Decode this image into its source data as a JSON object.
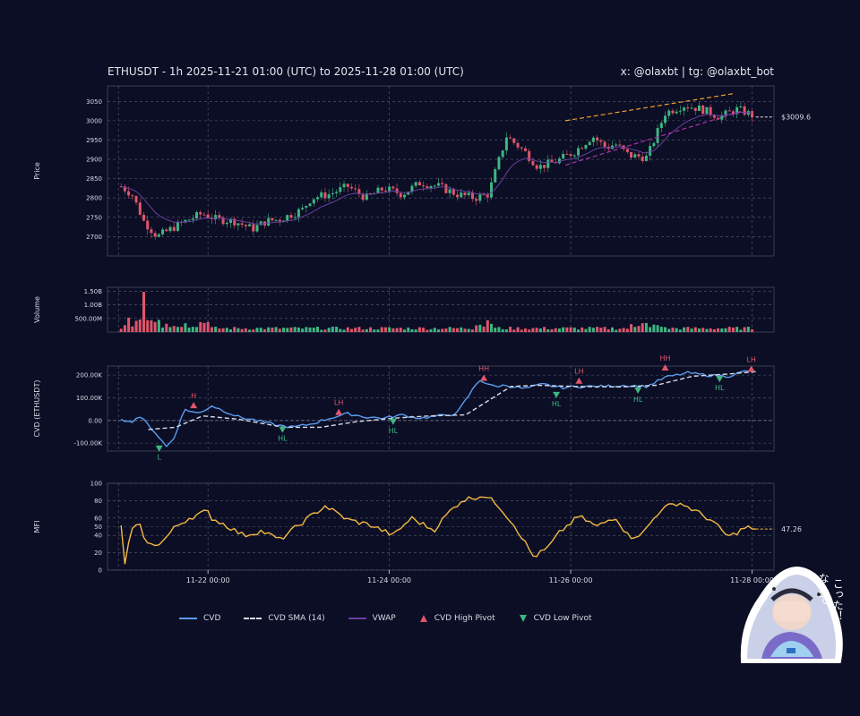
{
  "header": {
    "title": "ETHUSDT - 1h 2025-11-21 01:00 (UTC) to 2025-11-28 01:00 (UTC)",
    "credit": "x: @olaxbt | tg: @olaxbt_bot"
  },
  "colors": {
    "background": "#0b0e24",
    "up": "#3fb583",
    "down": "#e0556b",
    "cvd": "#5b9cf0",
    "cvd_sma": "#d8dbe6",
    "vwap": "#6a3fa0",
    "trend_upper": "#f0a030",
    "trend_lower": "#b030b0",
    "mfi": "#f5b942"
  },
  "legend": {
    "cvd": "CVD",
    "cvd_sma": "CVD SMA (14)",
    "vwap": "VWAP",
    "high_pivot": "CVD High Pivot",
    "low_pivot": "CVD Low Pivot"
  },
  "sticker": {
    "caption_line1": "こった！",
    "caption_line2": "なんて"
  },
  "chart_data": [
    {
      "type": "candlestick",
      "panel": "price",
      "ylabel": "Price",
      "ylim": [
        2650,
        3090
      ],
      "yticks": [
        2700,
        2750,
        2800,
        2850,
        2900,
        2950,
        3000,
        3050
      ],
      "xlim": [
        -0.15,
        7.2
      ],
      "last_price_label": "$3009.6",
      "last_price": 3009.6,
      "anchors_t": [
        0,
        0.12,
        0.25,
        0.4,
        0.55,
        0.75,
        0.9,
        1.05,
        1.25,
        1.45,
        1.6,
        1.75,
        2.0,
        2.1,
        2.3,
        2.5,
        2.7,
        2.9,
        3.1,
        3.3,
        3.5,
        3.7,
        3.9,
        4.05,
        4.25,
        4.45,
        4.6,
        4.8,
        5.0,
        5.2,
        5.35,
        5.45,
        5.6,
        5.8,
        6.0,
        6.2,
        6.4,
        6.6,
        6.8,
        7.0
      ],
      "anchors_price": [
        2830,
        2810,
        2740,
        2700,
        2720,
        2745,
        2760,
        2745,
        2740,
        2720,
        2740,
        2745,
        2770,
        2800,
        2810,
        2830,
        2800,
        2825,
        2810,
        2840,
        2830,
        2810,
        2800,
        2810,
        2960,
        2920,
        2880,
        2895,
        2920,
        2960,
        2930,
        2940,
        2910,
        2905,
        3020,
        3040,
        3030,
        3010,
        3030,
        3010
      ],
      "trend_upper": [
        [
          4.9,
          3000
        ],
        [
          6.75,
          3070
        ]
      ],
      "trend_lower": [
        [
          4.9,
          2885
        ],
        [
          6.85,
          3025
        ]
      ]
    },
    {
      "type": "bar",
      "panel": "volume",
      "ylabel": "Volume",
      "yticks": [
        "500.00M",
        "1.00B",
        "1.50B"
      ],
      "ytick_values": [
        500,
        1000,
        1500
      ],
      "ylim": [
        0,
        1650
      ],
      "units": "millions",
      "spike_time": 0.25,
      "spike_value": 1480
    },
    {
      "type": "line",
      "panel": "cvd",
      "ylabel": "CVD (ETHUSDT)",
      "yticks": [
        "-100.00K",
        "0.00",
        "100.00K",
        "200.00K"
      ],
      "ytick_values": [
        -100,
        0,
        100,
        200
      ],
      "ylim": [
        -135,
        240
      ],
      "units": "thousands",
      "cvd_t": [
        0,
        0.1,
        0.2,
        0.35,
        0.5,
        0.58,
        0.7,
        0.85,
        1.0,
        1.15,
        1.3,
        1.5,
        1.7,
        1.9,
        2.1,
        2.3,
        2.5,
        2.7,
        2.9,
        3.1,
        3.3,
        3.5,
        3.7,
        3.95,
        4.1,
        4.25,
        4.45,
        4.65,
        4.85,
        5.05,
        5.3,
        5.55,
        5.8,
        6.0,
        6.25,
        6.45,
        6.7,
        6.9,
        7.0
      ],
      "cvd_values": [
        10,
        -10,
        20,
        -40,
        -115,
        -80,
        50,
        30,
        65,
        40,
        15,
        0,
        -20,
        -30,
        -15,
        10,
        30,
        15,
        10,
        25,
        10,
        20,
        30,
        180,
        150,
        155,
        140,
        160,
        145,
        150,
        150,
        155,
        150,
        190,
        210,
        200,
        195,
        220,
        215
      ],
      "sma_t": [
        0.3,
        0.6,
        0.9,
        1.3,
        1.8,
        2.2,
        2.6,
        3.0,
        3.4,
        3.8,
        4.1,
        4.3,
        4.6,
        5.0,
        5.5,
        5.9,
        6.3,
        6.7,
        7.0
      ],
      "sma_values": [
        -40,
        -30,
        20,
        5,
        -30,
        -30,
        -5,
        10,
        20,
        25,
        100,
        150,
        155,
        150,
        148,
        155,
        195,
        205,
        215
      ],
      "high_pivots": [
        {
          "label": "H",
          "t": 0.8,
          "v": 62
        },
        {
          "label": "LH",
          "t": 2.4,
          "v": 32
        },
        {
          "label": "HH",
          "t": 4.0,
          "v": 183
        },
        {
          "label": "LH",
          "t": 5.05,
          "v": 170
        },
        {
          "label": "HH",
          "t": 6.0,
          "v": 228
        },
        {
          "label": "LH",
          "t": 6.95,
          "v": 222
        }
      ],
      "low_pivots": [
        {
          "label": "L",
          "t": 0.42,
          "v": -118
        },
        {
          "label": "HL",
          "t": 1.78,
          "v": -35
        },
        {
          "label": "HL",
          "t": 3.0,
          "v": 0
        },
        {
          "label": "HL",
          "t": 4.8,
          "v": 118
        },
        {
          "label": "HL",
          "t": 5.7,
          "v": 138
        },
        {
          "label": "HL",
          "t": 6.6,
          "v": 188
        }
      ]
    },
    {
      "type": "line",
      "panel": "mfi",
      "ylabel": "MFI",
      "yticks": [
        0,
        20,
        40,
        50,
        60,
        80,
        100
      ],
      "ylim": [
        0,
        100
      ],
      "last_value_label": "47.26",
      "last_value": 47.26,
      "xticks": [
        "11-22 00:00",
        "11-24 00:00",
        "11-26 00:00",
        "11-28 00:00"
      ],
      "xtick_t": [
        0.958,
        2.958,
        4.958,
        6.958
      ],
      "mfi_t": [
        0,
        0.05,
        0.1,
        0.2,
        0.3,
        0.45,
        0.6,
        0.75,
        0.95,
        1.0,
        1.15,
        1.35,
        1.55,
        1.75,
        2.0,
        2.25,
        2.5,
        2.75,
        3.0,
        3.2,
        3.45,
        3.6,
        3.75,
        3.9,
        4.0,
        4.15,
        4.35,
        4.55,
        4.7,
        4.85,
        5.05,
        5.25,
        5.45,
        5.6,
        5.75,
        5.95,
        6.15,
        6.3,
        6.5,
        6.7,
        6.9,
        7.0,
        7.2
      ],
      "mfi_values": [
        50,
        0,
        45,
        52,
        28,
        32,
        50,
        60,
        68,
        60,
        52,
        40,
        45,
        35,
        55,
        74,
        58,
        52,
        40,
        60,
        46,
        65,
        80,
        84,
        86,
        76,
        50,
        15,
        25,
        45,
        62,
        50,
        62,
        38,
        42,
        70,
        78,
        70,
        58,
        38,
        50,
        45,
        47.26
      ]
    }
  ]
}
